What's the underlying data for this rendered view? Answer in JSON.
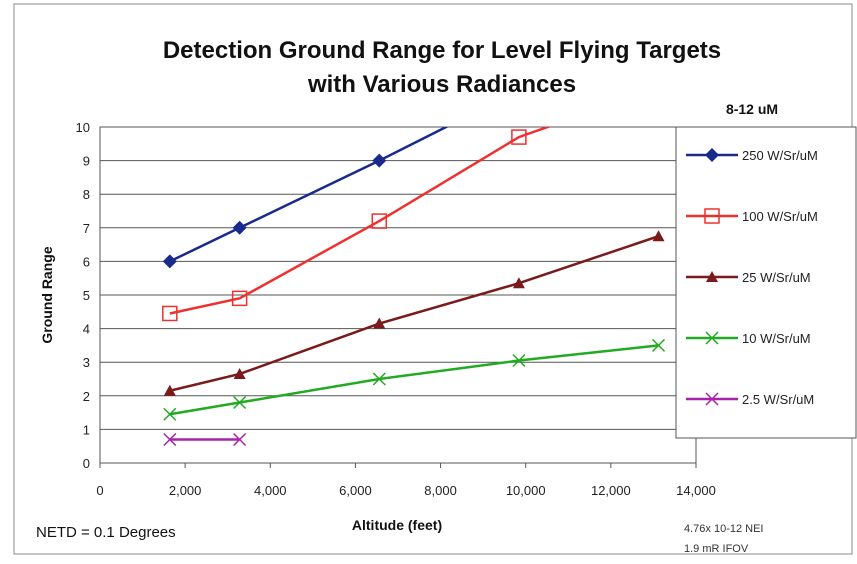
{
  "chart_data": {
    "type": "line",
    "title": [
      "Detection Ground Range for Level Flying Targets",
      "with Various Radiances"
    ],
    "band": "8-12 uM",
    "xlabel": "Altitude (feet)",
    "ylabel": "Ground Range",
    "xlim": [
      0,
      14000
    ],
    "ylim": [
      0,
      10
    ],
    "xticks": [
      0,
      2000,
      4000,
      6000,
      8000,
      10000,
      12000,
      14000
    ],
    "xtick_labels": [
      "0",
      "2,000",
      "4,000",
      "6,000",
      "8,000",
      "10,000",
      "12,000",
      "14,000"
    ],
    "yticks": [
      0,
      1,
      2,
      3,
      4,
      5,
      6,
      7,
      8,
      9,
      10
    ],
    "ytick_labels": [
      "0",
      "1",
      "2",
      "3",
      "4",
      "5",
      "6",
      "7",
      "8",
      "9",
      "10"
    ],
    "grid": true,
    "legend_position": "right",
    "notes": {
      "netd": "NETD = 0.1 Degrees",
      "nei_line1": "4.76x 10-12 NEI",
      "nei_line2": "1.9 mR IFOV"
    },
    "series": [
      {
        "name": "250 W/Sr/uM",
        "color": "#1a2a8c",
        "marker": "diamond",
        "x": [
          1640,
          3280,
          6560,
          8600
        ],
        "y": [
          6.0,
          7.0,
          9.0,
          10.3
        ],
        "markers_at": [
          0,
          1,
          2
        ]
      },
      {
        "name": "100 W/Sr/uM",
        "color": "#ee3030",
        "marker": "square-open",
        "x": [
          1640,
          3280,
          6560,
          9840,
          11300
        ],
        "y": [
          4.45,
          4.9,
          7.2,
          9.7,
          10.35
        ],
        "markers_at": [
          0,
          1,
          2,
          3
        ]
      },
      {
        "name": "25 W/Sr/uM",
        "color": "#7a1a1a",
        "marker": "triangle",
        "x": [
          1640,
          3280,
          6560,
          9840,
          13120
        ],
        "y": [
          2.15,
          2.65,
          4.15,
          5.35,
          6.75
        ],
        "markers_at": [
          0,
          1,
          2,
          3,
          4
        ]
      },
      {
        "name": "10 W/Sr/uM",
        "color": "#22aa22",
        "marker": "x",
        "x": [
          1640,
          3280,
          6560,
          9840,
          13120
        ],
        "y": [
          1.45,
          1.8,
          2.5,
          3.05,
          3.5
        ],
        "markers_at": [
          0,
          1,
          2,
          3,
          4
        ]
      },
      {
        "name": "2.5 W/Sr/uM",
        "color": "#aa22aa",
        "marker": "x",
        "x": [
          1640,
          3280
        ],
        "y": [
          0.7,
          0.7
        ],
        "markers_at": [
          0,
          1
        ]
      }
    ]
  }
}
